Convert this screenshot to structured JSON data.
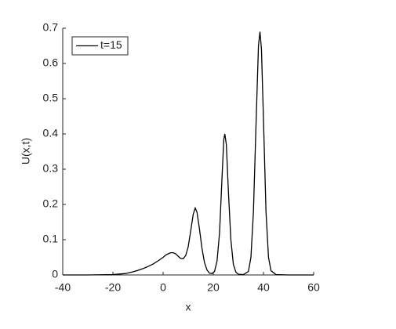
{
  "chart_data": {
    "type": "line",
    "xlabel": "x",
    "ylabel": "U(x,t)",
    "x": [
      -40,
      -30,
      -20,
      -15,
      -12,
      -10,
      -8,
      -6,
      -4,
      -2,
      0,
      1,
      2,
      3,
      4,
      5,
      6,
      7,
      8,
      9,
      10,
      11,
      12,
      12.8,
      13.5,
      14.5,
      15.5,
      16.5,
      17.5,
      18.5,
      19.5,
      20.5,
      21.5,
      22.5,
      23.5,
      24.2,
      24.6,
      25.2,
      26,
      27,
      28,
      29,
      30,
      32,
      34,
      35,
      36,
      37,
      38,
      38.6,
      39.2,
      40,
      41,
      42,
      43,
      45,
      50,
      60
    ],
    "series": [
      {
        "name": "t=15",
        "color": "#000000",
        "values": [
          0,
          0,
          0.001,
          0.004,
          0.009,
          0.013,
          0.018,
          0.024,
          0.031,
          0.04,
          0.05,
          0.056,
          0.06,
          0.063,
          0.063,
          0.06,
          0.053,
          0.047,
          0.046,
          0.055,
          0.08,
          0.125,
          0.172,
          0.19,
          0.178,
          0.13,
          0.075,
          0.035,
          0.014,
          0.005,
          0.004,
          0.01,
          0.04,
          0.12,
          0.28,
          0.385,
          0.4,
          0.37,
          0.24,
          0.1,
          0.03,
          0.008,
          0.002,
          0.001,
          0.01,
          0.05,
          0.18,
          0.42,
          0.65,
          0.69,
          0.64,
          0.44,
          0.18,
          0.05,
          0.012,
          0.001,
          0,
          0
        ]
      }
    ],
    "xlim": [
      -40,
      60
    ],
    "xticks": [
      -40,
      -20,
      0,
      20,
      40,
      60
    ],
    "ylim": [
      0,
      0.7
    ],
    "yticks": [
      0,
      0.1,
      0.2,
      0.3,
      0.4,
      0.5,
      0.6,
      0.7
    ],
    "legend": "top-left"
  }
}
